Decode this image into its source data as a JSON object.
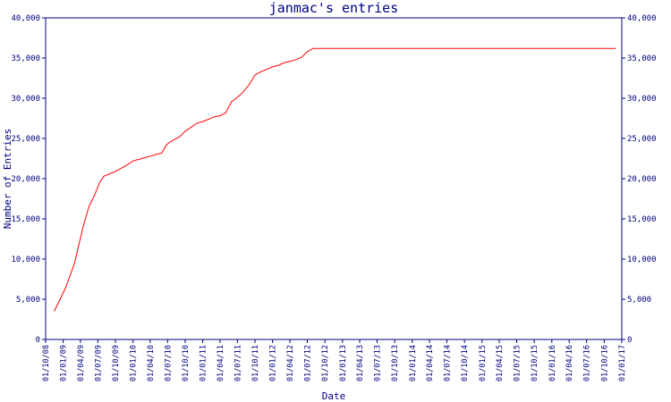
{
  "chart_data": {
    "type": "line",
    "title": "janmac's entries",
    "xlabel": "Date",
    "ylabel": "Number of Entries",
    "ylim": [
      0,
      40000
    ],
    "xlim": [
      "2008-10-01",
      "2017-01-01"
    ],
    "yticks": [
      0,
      5000,
      10000,
      15000,
      20000,
      25000,
      30000,
      35000,
      40000
    ],
    "ytick_labels": [
      "0",
      "5,000",
      "10,000",
      "15,000",
      "20,000",
      "25,000",
      "30,000",
      "35,000",
      "40,000"
    ],
    "xticks": [
      "2008-10-01",
      "2009-01-01",
      "2009-04-01",
      "2009-07-01",
      "2009-10-01",
      "2010-01-01",
      "2010-04-01",
      "2010-07-01",
      "2010-10-01",
      "2011-01-01",
      "2011-04-01",
      "2011-07-01",
      "2011-10-01",
      "2012-01-01",
      "2012-04-01",
      "2012-07-01",
      "2012-10-01",
      "2013-01-01",
      "2013-04-01",
      "2013-07-01",
      "2013-10-01",
      "2014-01-01",
      "2014-04-01",
      "2014-07-01",
      "2014-10-01",
      "2015-01-01",
      "2015-04-01",
      "2015-07-01",
      "2015-10-01",
      "2016-01-01",
      "2016-04-01",
      "2016-07-01",
      "2016-10-01",
      "2017-01-01"
    ],
    "xtick_labels": [
      "01/10/08",
      "01/01/09",
      "01/04/09",
      "01/07/09",
      "01/10/09",
      "01/01/10",
      "01/04/10",
      "01/07/10",
      "01/10/10",
      "01/01/11",
      "01/04/11",
      "01/07/11",
      "01/10/11",
      "01/01/12",
      "01/04/12",
      "01/07/12",
      "01/10/12",
      "01/01/13",
      "01/04/13",
      "01/07/13",
      "01/10/13",
      "01/01/14",
      "01/04/14",
      "01/07/14",
      "01/10/14",
      "01/01/15",
      "01/04/15",
      "01/07/15",
      "01/10/15",
      "01/01/16",
      "01/04/16",
      "01/07/16",
      "01/10/16",
      "01/01/17"
    ],
    "grid": false,
    "series": [
      {
        "color": "#ff0000",
        "x": [
          "2008-11-15",
          "2009-01-15",
          "2009-03-01",
          "2009-04-15",
          "2009-05-15",
          "2009-06-15",
          "2009-07-10",
          "2009-08-01",
          "2009-09-01",
          "2009-10-01",
          "2009-11-01",
          "2009-12-01",
          "2010-01-01",
          "2010-02-01",
          "2010-03-01",
          "2010-04-01",
          "2010-05-01",
          "2010-06-01",
          "2010-06-25",
          "2010-07-10",
          "2010-08-01",
          "2010-09-01",
          "2010-10-01",
          "2010-11-01",
          "2010-12-01",
          "2011-01-01",
          "2011-02-01",
          "2011-03-01",
          "2011-04-01",
          "2011-05-01",
          "2011-06-01",
          "2011-06-20",
          "2011-07-10",
          "2011-08-01",
          "2011-09-01",
          "2011-10-01",
          "2011-11-01",
          "2011-12-01",
          "2012-01-01",
          "2012-02-01",
          "2012-03-01",
          "2012-04-01",
          "2012-05-01",
          "2012-06-01",
          "2012-07-01",
          "2012-08-01",
          "2012-09-01",
          "2012-10-01",
          "2012-11-01",
          "2013-01-01",
          "2014-01-01",
          "2015-01-01",
          "2016-01-01",
          "2016-12-01"
        ],
        "values": [
          3500,
          6500,
          9500,
          14000,
          16500,
          18000,
          19500,
          20300,
          20600,
          20900,
          21300,
          21700,
          22200,
          22400,
          22600,
          22800,
          23000,
          23200,
          24200,
          24500,
          24800,
          25200,
          25900,
          26400,
          26900,
          27100,
          27400,
          27700,
          27800,
          28200,
          29600,
          29900,
          30300,
          30800,
          31700,
          32900,
          33300,
          33600,
          33900,
          34100,
          34400,
          34600,
          34800,
          35100,
          35800,
          36200,
          36200,
          36200,
          36200,
          36200,
          36200,
          36200,
          36200,
          36200
        ]
      }
    ]
  }
}
